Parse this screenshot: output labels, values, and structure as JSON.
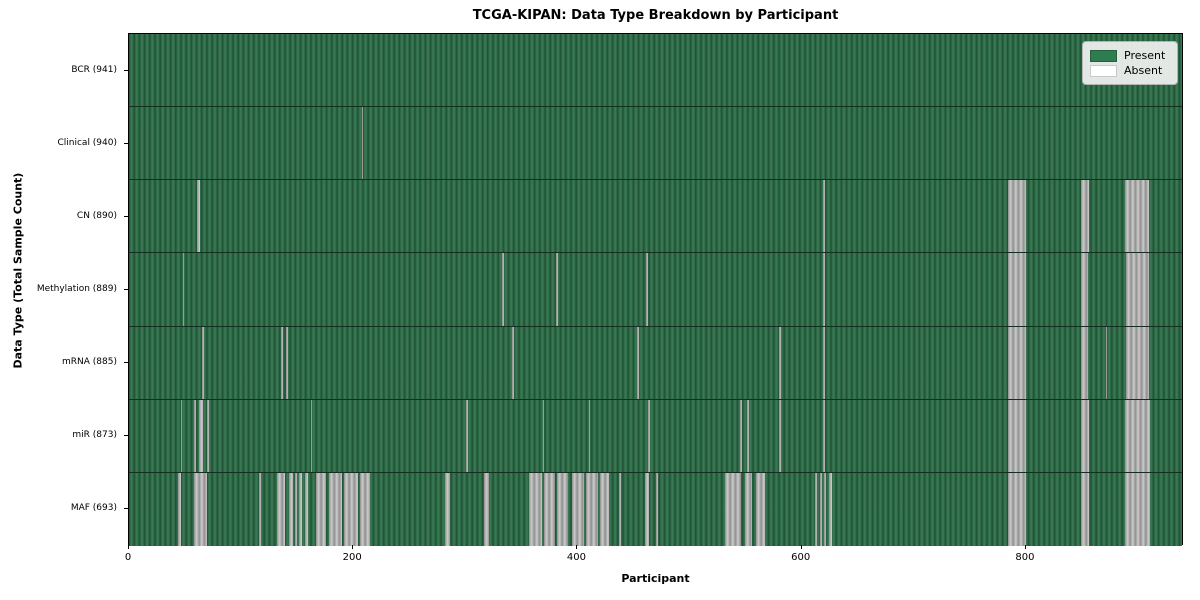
{
  "title": "TCGA-KIPAN: Data Type Breakdown by Participant",
  "chart_data": {
    "type": "heatmap",
    "title": "TCGA-KIPAN: Data Type Breakdown by Participant",
    "xlabel": "Participant",
    "ylabel": "Data Type (Total Sample Count)",
    "x_ticks": [
      0,
      200,
      400,
      600,
      800
    ],
    "x_max": 941,
    "grid": false,
    "legend_position": "upper right",
    "legend": [
      {
        "label": "Present",
        "color": "#2d7d4e"
      },
      {
        "label": "Absent",
        "color": "#ffffff"
      }
    ],
    "colors": {
      "present_green": "#2e6b47",
      "absent_gray": "#b0b0b0",
      "row_divider": "#142f1f"
    },
    "rows": [
      {
        "label": "BCR (941)",
        "data_type": "BCR",
        "present_count": 941,
        "absent_ranges": []
      },
      {
        "label": "Clinical (940)",
        "data_type": "Clinical",
        "present_count": 940,
        "absent_ranges": [
          [
            207.5,
            209
          ]
        ]
      },
      {
        "label": "CN (890)",
        "data_type": "CN",
        "present_count": 890,
        "absent_ranges": [
          [
            61,
            63
          ],
          [
            619,
            621
          ],
          [
            784,
            800
          ],
          [
            849,
            856
          ],
          [
            888,
            910
          ]
        ]
      },
      {
        "label": "Methylation (889)",
        "data_type": "Methylation",
        "present_count": 889,
        "absent_ranges": [
          [
            48,
            49.5
          ],
          [
            333,
            334.5
          ],
          [
            381,
            382.5
          ],
          [
            461,
            462.5
          ],
          [
            619,
            620.5
          ],
          [
            784,
            800
          ],
          [
            849,
            855
          ],
          [
            889,
            910
          ]
        ]
      },
      {
        "label": "mRNA (885)",
        "data_type": "mRNA",
        "present_count": 885,
        "absent_ranges": [
          [
            65,
            66.5
          ],
          [
            136,
            137.5
          ],
          [
            140,
            141.5
          ],
          [
            342,
            343.5
          ],
          [
            453,
            454.5
          ],
          [
            580,
            581.5
          ],
          [
            619,
            620.5
          ],
          [
            784,
            800
          ],
          [
            849,
            855
          ],
          [
            871,
            872.5
          ],
          [
            889,
            910
          ]
        ]
      },
      {
        "label": "miR (873)",
        "data_type": "miR",
        "present_count": 873,
        "absent_ranges": [
          [
            46,
            47.5
          ],
          [
            58,
            60
          ],
          [
            62,
            66
          ],
          [
            70,
            71.5
          ],
          [
            162,
            163.5
          ],
          [
            301,
            302.5
          ],
          [
            369,
            370.5
          ],
          [
            410,
            411.5
          ],
          [
            463,
            464.5
          ],
          [
            545,
            546.5
          ],
          [
            551,
            553
          ],
          [
            580,
            581.5
          ],
          [
            619,
            620.5
          ],
          [
            784,
            800
          ],
          [
            849,
            856
          ],
          [
            888,
            911
          ]
        ]
      },
      {
        "label": "MAF (693)",
        "data_type": "MAF",
        "present_count": 693,
        "absent_ranges": [
          [
            44,
            46
          ],
          [
            58,
            70
          ],
          [
            116,
            117.5
          ],
          [
            132,
            139
          ],
          [
            143,
            146
          ],
          [
            148,
            150
          ],
          [
            152,
            154
          ],
          [
            157,
            160
          ],
          [
            167,
            176
          ],
          [
            178,
            190
          ],
          [
            192,
            204
          ],
          [
            206,
            215
          ],
          [
            282,
            286
          ],
          [
            317,
            321
          ],
          [
            357,
            368
          ],
          [
            370,
            380
          ],
          [
            382,
            392
          ],
          [
            395,
            406
          ],
          [
            408,
            418
          ],
          [
            420,
            428
          ],
          [
            437,
            438.5
          ],
          [
            460,
            464
          ],
          [
            470,
            471.5
          ],
          [
            532,
            546
          ],
          [
            549,
            556
          ],
          [
            559,
            567
          ],
          [
            612,
            614
          ],
          [
            616,
            618
          ],
          [
            620,
            622
          ],
          [
            624,
            627
          ],
          [
            784,
            800
          ],
          [
            849,
            856
          ],
          [
            888,
            911
          ]
        ]
      }
    ]
  }
}
